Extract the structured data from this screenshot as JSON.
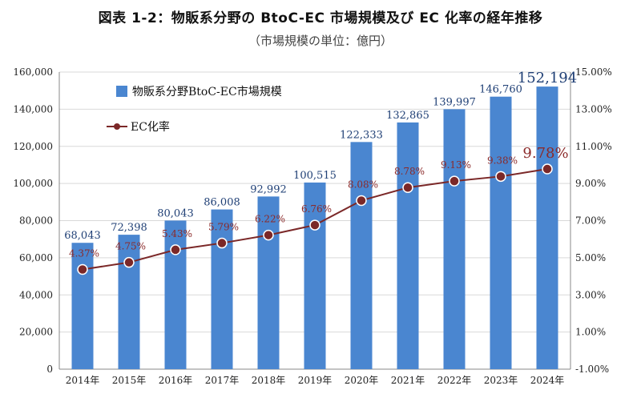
{
  "title": "図表 1-2：物販系分野の BtoC-EC 市場規模及び EC 化率の経年推移",
  "subtitle": "（市場規模の単位：億円）",
  "colors": {
    "bar": "#4a86d0",
    "line": "#7b2828",
    "label_blue": "#1f3f75",
    "label_red": "#8b2a2a",
    "axis": "#888888"
  },
  "chart_data": {
    "type": "bar",
    "title": "図表 1-2：物販系分野の BtoC-EC 市場規模及び EC 化率の経年推移",
    "subtitle": "（市場規模の単位：億円）",
    "categories": [
      "2014年",
      "2015年",
      "2016年",
      "2017年",
      "2018年",
      "2019年",
      "2020年",
      "2021年",
      "2022年",
      "2023年",
      "2024年"
    ],
    "series": [
      {
        "name": "物販系分野BtoC-EC市場規模",
        "type": "bar",
        "axis": "left",
        "values": [
          68043,
          72398,
          80043,
          86008,
          92992,
          100515,
          122333,
          132865,
          139997,
          146760,
          152194
        ],
        "labels": [
          "68,043",
          "72,398",
          "80,043",
          "86,008",
          "92,992",
          "100,515",
          "122,333",
          "132,865",
          "139,997",
          "146,760",
          "152,194"
        ]
      },
      {
        "name": "EC化率",
        "type": "line",
        "axis": "right",
        "values": [
          4.37,
          4.75,
          5.43,
          5.79,
          6.22,
          6.76,
          8.08,
          8.78,
          9.13,
          9.38,
          9.78
        ],
        "labels": [
          "4.37%",
          "4.75%",
          "5.43%",
          "5.79%",
          "6.22%",
          "6.76%",
          "8.08%",
          "8.78%",
          "9.13%",
          "9.38%",
          "9.78%"
        ]
      }
    ],
    "ylim_left": [
      0,
      160000
    ],
    "yticks_left": [
      "0",
      "20,000",
      "40,000",
      "60,000",
      "80,000",
      "100,000",
      "120,000",
      "140,000",
      "160,000"
    ],
    "ylim_right": [
      -1,
      15
    ],
    "yticks_right": [
      "-1.00%",
      "1.00%",
      "3.00%",
      "5.00%",
      "7.00%",
      "9.00%",
      "11.00%",
      "13.00%",
      "15.00%"
    ],
    "grid": true,
    "legend": "top-left"
  }
}
